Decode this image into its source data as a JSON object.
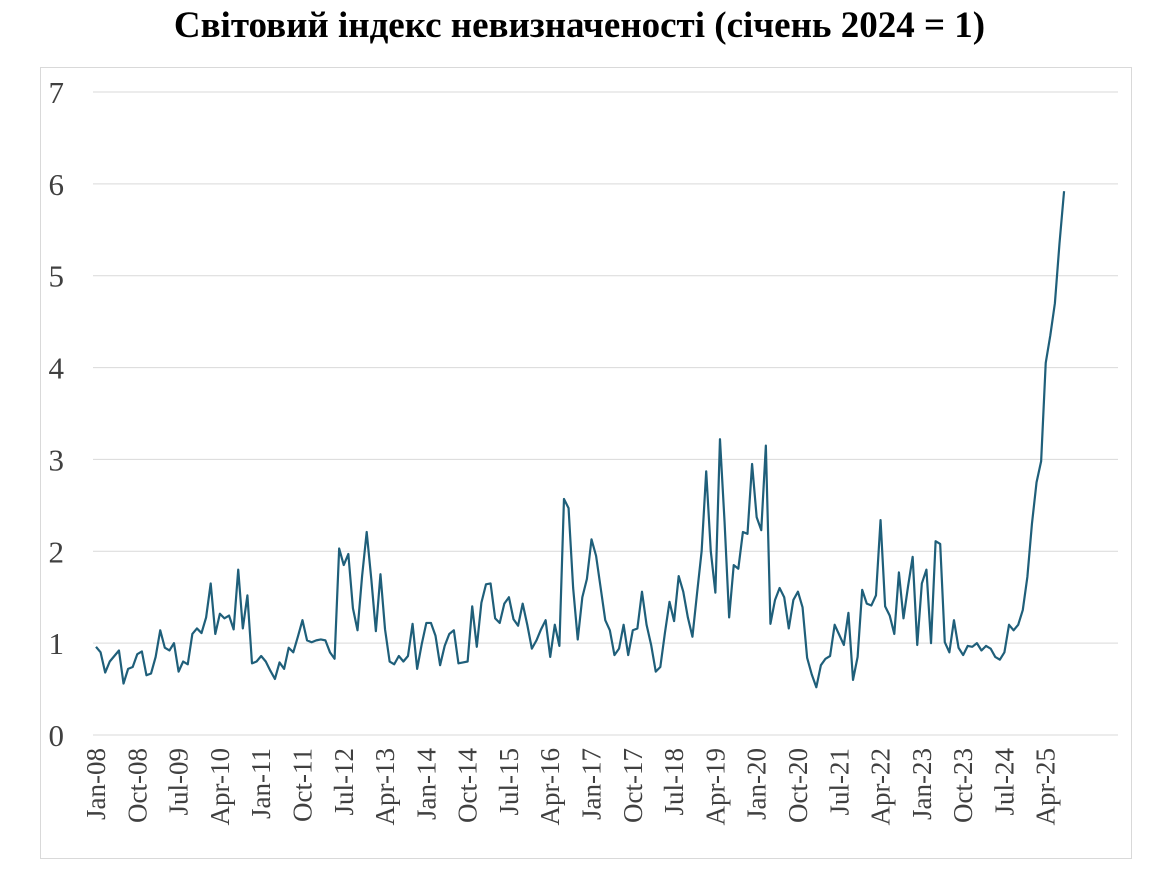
{
  "chart_data": {
    "type": "line",
    "title": "Світовий індекс невизначеності (січень 2024 = 1)",
    "xlabel": "",
    "ylabel": "",
    "ylim": [
      0,
      7
    ],
    "y_ticks": [
      "0",
      "1",
      "2",
      "3",
      "4",
      "5",
      "6",
      "7"
    ],
    "x_tick_labels": [
      "Jan-08",
      "Oct-08",
      "Jul-09",
      "Apr-10",
      "Jan-11",
      "Oct-11",
      "Jul-12",
      "Apr-13",
      "Jan-14",
      "Oct-14",
      "Jul-15",
      "Apr-16",
      "Jan-17",
      "Oct-17",
      "Jul-18",
      "Apr-19",
      "Jan-20",
      "Oct-20",
      "Jul-21",
      "Apr-22",
      "Jan-23",
      "Oct-23",
      "Jul-24",
      "Apr-25"
    ],
    "grid": "horizontal",
    "legend": "none",
    "line_color": "#1f5f7a",
    "series": [
      {
        "values": [
          0.96,
          0.9,
          0.68,
          0.8,
          0.86,
          0.92,
          0.56,
          0.72,
          0.74,
          0.88,
          0.91,
          0.65,
          0.67,
          0.85,
          1.14,
          0.95,
          0.92,
          1.0,
          0.69,
          0.8,
          0.77,
          1.1,
          1.16,
          1.11,
          1.28,
          1.65,
          1.1,
          1.32,
          1.27,
          1.3,
          1.15,
          1.8,
          1.16,
          1.52,
          0.78,
          0.8,
          0.86,
          0.8,
          0.7,
          0.61,
          0.79,
          0.72,
          0.95,
          0.9,
          1.07,
          1.25,
          1.03,
          1.01,
          1.03,
          1.04,
          1.03,
          0.9,
          0.83,
          2.03,
          1.85,
          1.97,
          1.38,
          1.14,
          1.73,
          2.21,
          1.7,
          1.13,
          1.75,
          1.15,
          0.8,
          0.77,
          0.86,
          0.8,
          0.86,
          1.21,
          0.72,
          0.99,
          1.22,
          1.22,
          1.08,
          0.76,
          0.97,
          1.1,
          1.14,
          0.78,
          0.79,
          0.8,
          1.4,
          0.96,
          1.44,
          1.64,
          1.65,
          1.27,
          1.22,
          1.43,
          1.5,
          1.26,
          1.19,
          1.43,
          1.2,
          0.94,
          1.03,
          1.15,
          1.25,
          0.85,
          1.2,
          0.97,
          2.57,
          2.47,
          1.6,
          1.04,
          1.5,
          1.7,
          2.13,
          1.95,
          1.6,
          1.25,
          1.14,
          0.87,
          0.94,
          1.2,
          0.87,
          1.14,
          1.16,
          1.56,
          1.2,
          0.98,
          0.69,
          0.74,
          1.11,
          1.45,
          1.24,
          1.73,
          1.56,
          1.28,
          1.07,
          1.54,
          2.0,
          2.87,
          2.0,
          1.55,
          3.22,
          2.32,
          1.28,
          1.85,
          1.81,
          2.21,
          2.19,
          2.95,
          2.37,
          2.23,
          3.15,
          1.21,
          1.47,
          1.6,
          1.5,
          1.16,
          1.47,
          1.56,
          1.39,
          0.84,
          0.66,
          0.52,
          0.76,
          0.83,
          0.86,
          1.2,
          1.09,
          0.98,
          1.33,
          0.6,
          0.85,
          1.58,
          1.43,
          1.41,
          1.52,
          2.34,
          1.4,
          1.3,
          1.1,
          1.77,
          1.27,
          1.62,
          1.94,
          0.98,
          1.65,
          1.8,
          1.0,
          2.11,
          2.08,
          1.01,
          0.9,
          1.25,
          0.95,
          0.87,
          0.97,
          0.96,
          1.0,
          0.92,
          0.97,
          0.94,
          0.85,
          0.82,
          0.9,
          1.2,
          1.14,
          1.2,
          1.36,
          1.72,
          2.3,
          2.75,
          2.98,
          4.05,
          4.35,
          4.7,
          5.35,
          5.92
        ]
      }
    ]
  }
}
